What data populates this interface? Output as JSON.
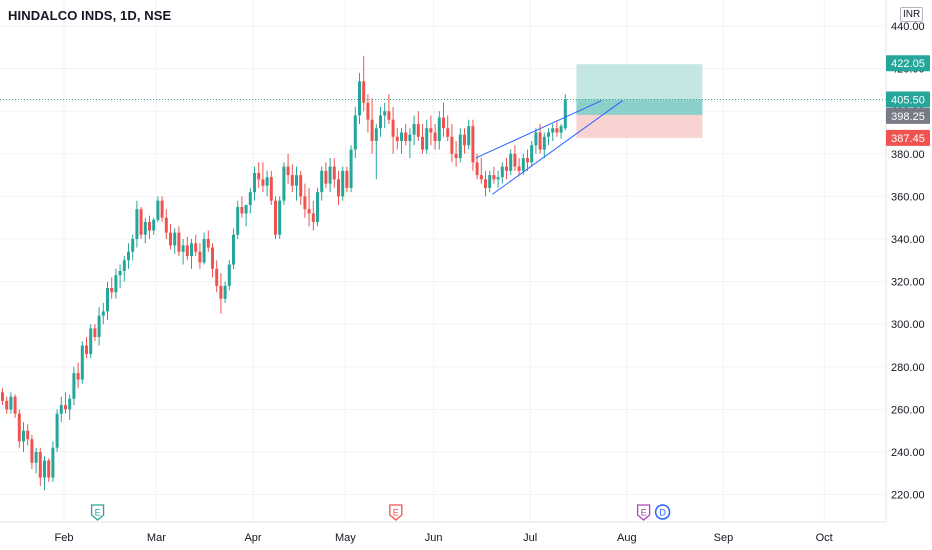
{
  "header": {
    "symbol": "HINDALCO INDS, 1D, NSE",
    "currency": "INR"
  },
  "colors": {
    "up": "#26a69a",
    "down": "#ef5350",
    "target_zone": "#b2dfdb",
    "stop_zone": "#f8c8c6",
    "wedge": "#2962ff",
    "grid": "#f0f3fa"
  },
  "chart_data": {
    "type": "candlestick",
    "ylim": [
      200,
      450
    ],
    "y_ticks": [
      220,
      240,
      260,
      280,
      300,
      320,
      340,
      360,
      380,
      400,
      420,
      440
    ],
    "y_tick_labels": [
      "220.00",
      "240.00",
      "260.00",
      "280.00",
      "300.00",
      "320.00",
      "340.00",
      "360.00",
      "380.00",
      "400.00",
      "420.00",
      "440.00"
    ],
    "x_month_labels": [
      "Feb",
      "Mar",
      "Apr",
      "May",
      "Jun",
      "Jul",
      "Aug",
      "Sep",
      "Oct"
    ],
    "month_bar_index": [
      15,
      37,
      60,
      82,
      103,
      126,
      149,
      172,
      196
    ],
    "events": [
      {
        "bar": 23,
        "icons": [
          "E"
        ]
      },
      {
        "bar": 94,
        "icons": [
          "E"
        ]
      },
      {
        "bar": 153,
        "icons": [
          "E",
          "D"
        ]
      }
    ],
    "price_tags": [
      {
        "value": 422.05,
        "label": "422.05",
        "kind": "target"
      },
      {
        "value": 405.5,
        "label": "405.50",
        "kind": "last"
      },
      {
        "value": 398.25,
        "label": "398.25",
        "kind": "entry"
      },
      {
        "value": 387.45,
        "label": "387.45",
        "kind": "stop"
      }
    ],
    "last_price": 405.5,
    "position": {
      "start_bar": 137,
      "end_bar": 167,
      "entry": 398.25,
      "target": 422.05,
      "stop": 387.45
    },
    "wedge": {
      "upper": [
        [
          113,
          378
        ],
        [
          143,
          405
        ]
      ],
      "lower": [
        [
          117,
          361
        ],
        [
          148,
          405
        ]
      ]
    },
    "candles": [
      [
        268,
        270,
        262,
        264
      ],
      [
        264,
        266,
        258,
        260
      ],
      [
        260,
        268,
        258,
        266
      ],
      [
        266,
        267,
        256,
        258
      ],
      [
        258,
        260,
        242,
        245
      ],
      [
        245,
        254,
        240,
        250
      ],
      [
        250,
        253,
        243,
        246
      ],
      [
        246,
        248,
        232,
        235
      ],
      [
        235,
        242,
        230,
        240
      ],
      [
        240,
        242,
        224,
        228
      ],
      [
        228,
        238,
        222,
        236
      ],
      [
        236,
        237,
        226,
        228
      ],
      [
        228,
        245,
        226,
        242
      ],
      [
        242,
        260,
        240,
        258
      ],
      [
        258,
        266,
        254,
        262
      ],
      [
        262,
        268,
        258,
        260
      ],
      [
        260,
        267,
        255,
        265
      ],
      [
        265,
        280,
        262,
        277
      ],
      [
        277,
        282,
        270,
        274
      ],
      [
        274,
        292,
        272,
        290
      ],
      [
        290,
        294,
        284,
        286
      ],
      [
        286,
        300,
        284,
        298
      ],
      [
        298,
        300,
        292,
        294
      ],
      [
        294,
        308,
        290,
        304
      ],
      [
        304,
        310,
        300,
        306
      ],
      [
        306,
        320,
        302,
        317
      ],
      [
        317,
        322,
        312,
        315
      ],
      [
        315,
        326,
        312,
        323
      ],
      [
        323,
        328,
        317,
        325
      ],
      [
        325,
        332,
        320,
        330
      ],
      [
        330,
        338,
        326,
        334
      ],
      [
        334,
        342,
        330,
        340
      ],
      [
        340,
        358,
        336,
        354
      ],
      [
        354,
        355,
        340,
        342
      ],
      [
        342,
        350,
        338,
        348
      ],
      [
        348,
        351,
        340,
        344
      ],
      [
        344,
        350,
        342,
        349
      ],
      [
        349,
        360,
        348,
        358
      ],
      [
        358,
        360,
        348,
        350
      ],
      [
        350,
        354,
        340,
        343
      ],
      [
        343,
        347,
        335,
        337
      ],
      [
        337,
        345,
        333,
        343
      ],
      [
        343,
        346,
        332,
        334
      ],
      [
        334,
        340,
        328,
        337
      ],
      [
        337,
        341,
        330,
        332
      ],
      [
        332,
        340,
        326,
        338
      ],
      [
        338,
        342,
        332,
        334
      ],
      [
        334,
        338,
        326,
        329
      ],
      [
        329,
        343,
        328,
        340
      ],
      [
        340,
        344,
        334,
        336
      ],
      [
        336,
        338,
        322,
        326
      ],
      [
        326,
        330,
        315,
        318
      ],
      [
        318,
        324,
        305,
        312
      ],
      [
        312,
        320,
        310,
        318
      ],
      [
        318,
        330,
        316,
        328
      ],
      [
        328,
        345,
        326,
        342
      ],
      [
        342,
        358,
        340,
        355
      ],
      [
        355,
        360,
        350,
        352
      ],
      [
        352,
        356,
        346,
        356
      ],
      [
        356,
        364,
        352,
        362
      ],
      [
        362,
        374,
        358,
        371
      ],
      [
        371,
        376,
        364,
        368
      ],
      [
        368,
        376,
        362,
        365
      ],
      [
        365,
        372,
        360,
        369
      ],
      [
        369,
        372,
        356,
        358
      ],
      [
        358,
        360,
        340,
        342
      ],
      [
        342,
        360,
        340,
        358
      ],
      [
        358,
        376,
        356,
        374
      ],
      [
        374,
        380,
        366,
        370
      ],
      [
        370,
        375,
        362,
        365
      ],
      [
        365,
        374,
        358,
        370
      ],
      [
        370,
        372,
        356,
        360
      ],
      [
        360,
        366,
        350,
        354
      ],
      [
        354,
        364,
        346,
        352
      ],
      [
        352,
        358,
        344,
        348
      ],
      [
        348,
        364,
        346,
        362
      ],
      [
        362,
        374,
        358,
        372
      ],
      [
        372,
        376,
        364,
        366
      ],
      [
        366,
        378,
        362,
        374
      ],
      [
        374,
        378,
        364,
        368
      ],
      [
        368,
        372,
        356,
        360
      ],
      [
        360,
        374,
        358,
        372
      ],
      [
        372,
        374,
        362,
        364
      ],
      [
        364,
        384,
        362,
        382
      ],
      [
        382,
        402,
        378,
        398
      ],
      [
        398,
        418,
        394,
        414
      ],
      [
        414,
        426,
        400,
        404
      ],
      [
        404,
        408,
        390,
        396
      ],
      [
        396,
        406,
        380,
        386
      ],
      [
        386,
        394,
        368,
        392
      ],
      [
        392,
        402,
        388,
        398
      ],
      [
        398,
        404,
        392,
        400
      ],
      [
        400,
        408,
        394,
        396
      ],
      [
        396,
        402,
        380,
        388
      ],
      [
        388,
        392,
        382,
        386
      ],
      [
        386,
        392,
        380,
        390
      ],
      [
        390,
        394,
        384,
        386
      ],
      [
        386,
        392,
        378,
        389
      ],
      [
        389,
        398,
        384,
        394
      ],
      [
        394,
        400,
        386,
        388
      ],
      [
        388,
        394,
        380,
        382
      ],
      [
        382,
        396,
        380,
        392
      ],
      [
        392,
        398,
        384,
        390
      ],
      [
        390,
        394,
        382,
        386
      ],
      [
        386,
        400,
        382,
        397
      ],
      [
        397,
        404,
        388,
        392
      ],
      [
        392,
        398,
        386,
        388
      ],
      [
        388,
        394,
        376,
        380
      ],
      [
        380,
        386,
        374,
        378
      ],
      [
        378,
        392,
        376,
        389
      ],
      [
        389,
        392,
        380,
        384
      ],
      [
        384,
        396,
        382,
        393
      ],
      [
        393,
        396,
        372,
        376
      ],
      [
        376,
        380,
        368,
        370
      ],
      [
        370,
        378,
        366,
        368
      ],
      [
        368,
        372,
        360,
        364
      ],
      [
        364,
        372,
        362,
        370
      ],
      [
        370,
        374,
        366,
        368
      ],
      [
        368,
        372,
        364,
        369
      ],
      [
        369,
        376,
        366,
        374
      ],
      [
        374,
        378,
        368,
        372
      ],
      [
        372,
        382,
        370,
        380
      ],
      [
        380,
        384,
        372,
        374
      ],
      [
        374,
        378,
        370,
        372
      ],
      [
        372,
        380,
        370,
        378
      ],
      [
        378,
        382,
        372,
        376
      ],
      [
        376,
        386,
        374,
        384
      ],
      [
        384,
        392,
        380,
        390
      ],
      [
        390,
        394,
        380,
        382
      ],
      [
        382,
        390,
        378,
        388
      ],
      [
        388,
        392,
        384,
        390
      ],
      [
        390,
        394,
        386,
        392
      ],
      [
        392,
        395,
        388,
        390
      ],
      [
        390,
        394,
        387,
        393
      ],
      [
        392,
        408,
        391,
        405.5
      ]
    ]
  }
}
